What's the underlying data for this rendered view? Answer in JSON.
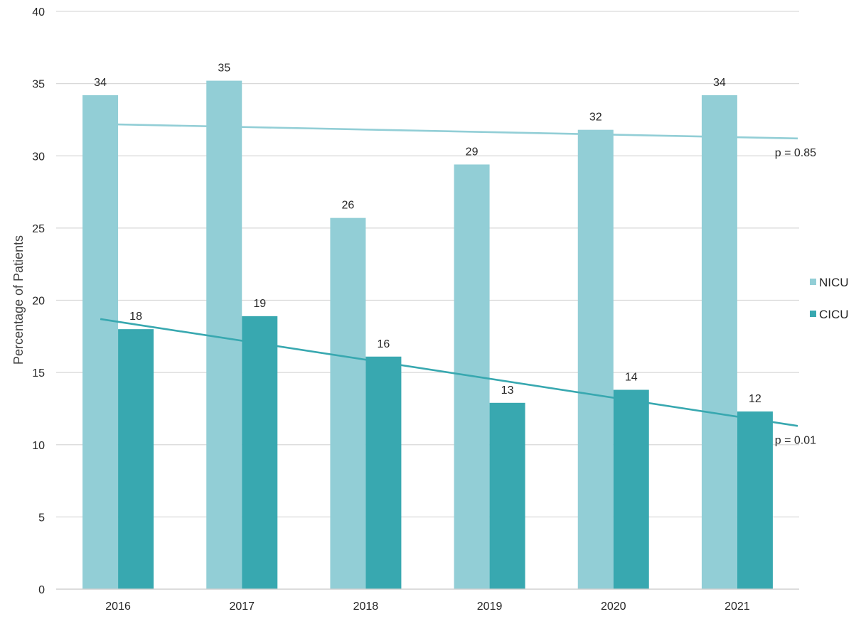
{
  "chart_data": {
    "type": "bar",
    "title": "",
    "xlabel": "",
    "ylabel": "Percentage of Patients",
    "ylim": [
      0,
      40
    ],
    "yticks": [
      0,
      5,
      10,
      15,
      20,
      25,
      30,
      35,
      40
    ],
    "grid": true,
    "legend_position": "right",
    "categories": [
      "2016",
      "2017",
      "2018",
      "2019",
      "2020",
      "2021"
    ],
    "series": [
      {
        "name": "NICU",
        "values": [
          34.2,
          35.2,
          25.7,
          29.4,
          31.8,
          34.2
        ],
        "labels": [
          "34",
          "35",
          "26",
          "29",
          "32",
          "34"
        ],
        "color": "#92CED6"
      },
      {
        "name": "CICU",
        "values": [
          18.0,
          18.9,
          16.1,
          12.9,
          13.8,
          12.3
        ],
        "labels": [
          "18",
          "19",
          "16",
          "13",
          "14",
          "12"
        ],
        "color": "#38A8B0"
      }
    ],
    "trendlines": [
      {
        "series": "NICU",
        "start_value": 32.2,
        "end_value": 31.2,
        "label": "p = 0.85",
        "color": "#92CED6"
      },
      {
        "series": "CICU",
        "start_value": 18.7,
        "end_value": 11.3,
        "label": "p = 0.01",
        "color": "#38A8B0"
      }
    ]
  }
}
